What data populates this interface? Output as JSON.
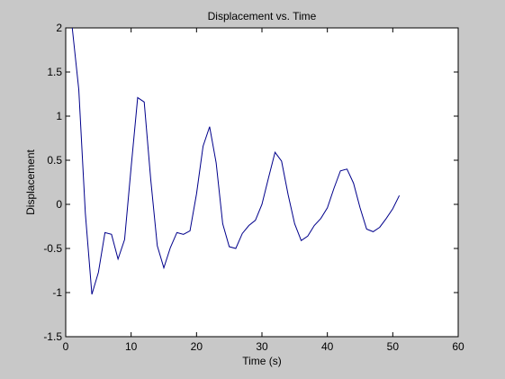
{
  "chart_data": {
    "type": "line",
    "title": "Displacement vs. Time",
    "xlabel": "Time (s)",
    "ylabel": "Displacement",
    "xlim": [
      0,
      60
    ],
    "ylim": [
      -1.5,
      2
    ],
    "xticks": [
      "0",
      "10",
      "20",
      "30",
      "40",
      "50",
      "60"
    ],
    "yticks": [
      "2",
      "1.5",
      "1",
      "0.5",
      "0",
      "-0.5",
      "-1",
      "-1.5"
    ],
    "grid": false,
    "line_color": "#00008b",
    "series": [
      {
        "x": [
          1,
          2,
          3,
          4,
          5,
          6,
          7,
          8,
          9,
          10,
          11,
          12,
          13,
          14,
          15,
          16,
          17,
          18,
          19,
          20,
          21,
          22,
          23,
          24,
          25,
          26,
          27,
          28,
          29,
          30,
          31,
          32,
          33,
          34,
          35,
          36,
          37,
          38,
          39,
          40,
          41,
          42,
          43,
          44,
          45,
          46,
          47,
          48,
          49,
          50,
          51
        ],
        "y": [
          2.0,
          1.3,
          -0.1,
          -1.02,
          -0.77,
          -0.32,
          -0.34,
          -0.62,
          -0.4,
          0.42,
          1.21,
          1.16,
          0.28,
          -0.47,
          -0.72,
          -0.49,
          -0.32,
          -0.34,
          -0.3,
          0.12,
          0.66,
          0.88,
          0.47,
          -0.22,
          -0.48,
          -0.5,
          -0.33,
          -0.24,
          -0.18,
          0.0,
          0.3,
          0.59,
          0.49,
          0.11,
          -0.22,
          -0.41,
          -0.36,
          -0.24,
          -0.16,
          -0.04,
          0.18,
          0.38,
          0.4,
          0.24,
          -0.04,
          -0.28,
          -0.31,
          -0.26,
          -0.16,
          -0.05,
          0.1
        ]
      }
    ]
  }
}
